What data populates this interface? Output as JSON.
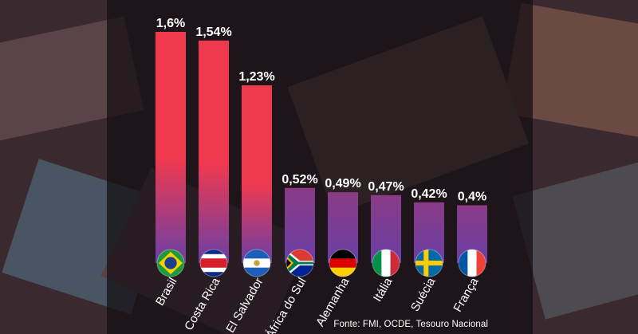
{
  "chart_data": {
    "type": "bar",
    "categories": [
      "Brasil",
      "Costa Rica",
      "El Salvador",
      "África do Sul",
      "Alemanha",
      "Itália",
      "Suécia",
      "França"
    ],
    "values": [
      1.6,
      1.54,
      1.23,
      0.52,
      0.49,
      0.47,
      0.42,
      0.4
    ],
    "value_labels": [
      "1,6%",
      "1,54%",
      "1,23%",
      "0,52%",
      "0,49%",
      "0,47%",
      "0,42%",
      "0,4%"
    ],
    "flags": [
      "brazil-flag",
      "costa-rica-flag",
      "el-salvador-flag",
      "south-africa-flag",
      "germany-flag",
      "italy-flag",
      "sweden-flag",
      "france-flag"
    ],
    "ylim": [
      0,
      1.6
    ],
    "grid": false,
    "title": "",
    "xlabel": "",
    "ylabel": ""
  },
  "source": "Fonte: FMI, OCDE, Tesouro Nacional",
  "colors": {
    "bar_top_high": "#f0394f",
    "bar_bottom": "#6a3fa5",
    "panel": "#140e12",
    "text": "#ffffff"
  }
}
